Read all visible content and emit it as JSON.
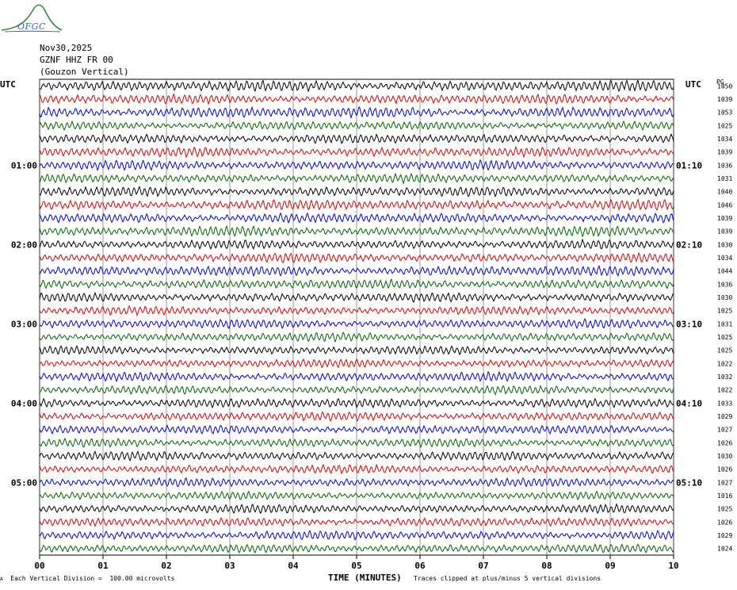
{
  "header": {
    "logo_text": "OFGC",
    "date": "Nov30,2025",
    "station": "GZNF HHZ FR 00",
    "location": "(Gouzon Vertical)"
  },
  "axis": {
    "left_unit": "UTC",
    "right_unit": "UTC",
    "right_column_header": "PG",
    "xlabel": "TIME (MINUTES)"
  },
  "footer": {
    "scale_marker": "A",
    "scale_note": "Each Vertical Division =  100.00 microvolts",
    "clip_note": "Traces clipped at plus/minus 5 vertical divisions"
  },
  "chart_data": {
    "type": "line",
    "title": "",
    "xlabel": "TIME (MINUTES)",
    "ylabel": "UTC",
    "xlim": [
      0,
      10
    ],
    "x_ticks": [
      "00",
      "01",
      "02",
      "03",
      "04",
      "05",
      "06",
      "07",
      "08",
      "09",
      "10"
    ],
    "left_time_labels": [
      "01:00",
      "02:00",
      "03:00",
      "04:00",
      "05:00"
    ],
    "right_time_labels": [
      "01:10",
      "02:10",
      "03:10",
      "04:10",
      "05:10"
    ],
    "left_time_label_rows": [
      6,
      12,
      18,
      24,
      30
    ],
    "trace_colors": [
      "#000000",
      "#dd0000",
      "#0000dd",
      "#006400"
    ],
    "trace_values": [
      1050,
      1039,
      1053,
      1025,
      1034,
      1039,
      1036,
      1031,
      1040,
      1046,
      1039,
      1039,
      1030,
      1034,
      1044,
      1036,
      1030,
      1025,
      1031,
      1025,
      1025,
      1022,
      1032,
      1022,
      1033,
      1029,
      1027,
      1026,
      1030,
      1026,
      1027,
      1016,
      1025,
      1026,
      1029,
      1024
    ],
    "grid": true
  }
}
